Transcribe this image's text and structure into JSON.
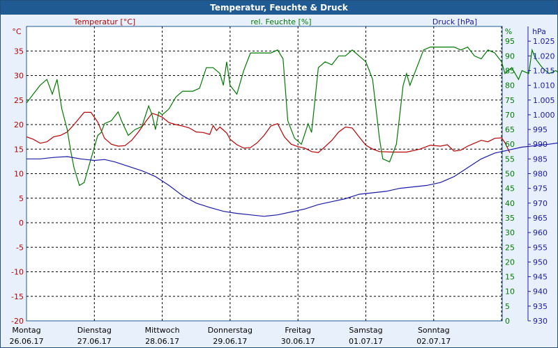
{
  "window": {
    "title": "Temperatur, Feuchte & Druck"
  },
  "chart_data": {
    "type": "line",
    "title": "Temperatur, Feuchte & Druck",
    "grid": true,
    "colors": {
      "temperature": "#b80000",
      "humidity": "#007a00",
      "pressure": "#1a1aa8",
      "frame": "#1f5b92"
    },
    "axes": {
      "temperature": {
        "unit": "°C",
        "label": "Temperatur [°C]",
        "range": [
          -20,
          40
        ],
        "ticks": [
          "35",
          "30",
          "25",
          "20",
          "15",
          "10",
          "5",
          "0",
          "-5",
          "-10",
          "-15",
          "-20"
        ]
      },
      "humidity": {
        "unit": "%",
        "label": "rel. Feuchte [%]",
        "range": [
          0,
          100
        ],
        "ticks": [
          "95",
          "90",
          "85",
          "80",
          "75",
          "70",
          "65",
          "60",
          "55",
          "50",
          "45",
          "40",
          "35",
          "30",
          "25",
          "20",
          "15",
          "10",
          "5",
          "0"
        ]
      },
      "pressure": {
        "unit": "hPa",
        "label": "Druck [hPa]",
        "range": [
          930,
          1030
        ],
        "ticks": [
          "1.025",
          "1.020",
          "1.015",
          "1.010",
          "1.005",
          "1.000",
          "995",
          "990",
          "985",
          "980",
          "975",
          "970",
          "965",
          "960",
          "955",
          "950",
          "945",
          "940",
          "935",
          "930"
        ]
      }
    },
    "days": [
      {
        "name": "Montag",
        "date": "26.06.17"
      },
      {
        "name": "Dienstag",
        "date": "27.06.17"
      },
      {
        "name": "Mittwoch",
        "date": "28.06.17"
      },
      {
        "name": "Donnerstag",
        "date": "29.06.17"
      },
      {
        "name": "Freitag",
        "date": "30.06.17"
      },
      {
        "name": "Samstag",
        "date": "01.07.17"
      },
      {
        "name": "Sonntag",
        "date": "02.07.17"
      }
    ],
    "x_range_days": [
      0,
      7
    ],
    "series": [
      {
        "name": "Temperatur [°C]",
        "axis": "temperature",
        "points": [
          [
            0,
            17.5
          ],
          [
            0.1,
            17
          ],
          [
            0.2,
            16.2
          ],
          [
            0.3,
            16.5
          ],
          [
            0.4,
            17.5
          ],
          [
            0.5,
            17.8
          ],
          [
            0.6,
            18.5
          ],
          [
            0.7,
            20
          ],
          [
            0.85,
            22.5
          ],
          [
            0.95,
            22.5
          ],
          [
            1.05,
            20.5
          ],
          [
            1.15,
            17.2
          ],
          [
            1.25,
            16
          ],
          [
            1.35,
            15.6
          ],
          [
            1.45,
            15.7
          ],
          [
            1.55,
            16.8
          ],
          [
            1.65,
            18.5
          ],
          [
            1.75,
            20.5
          ],
          [
            1.85,
            22.3
          ],
          [
            1.92,
            22
          ],
          [
            2.0,
            21.5
          ],
          [
            2.1,
            20.4
          ],
          [
            2.2,
            20
          ],
          [
            2.3,
            19.7
          ],
          [
            2.4,
            19.3
          ],
          [
            2.5,
            18.5
          ],
          [
            2.6,
            18.4
          ],
          [
            2.7,
            18
          ],
          [
            2.75,
            19.8
          ],
          [
            2.8,
            18.8
          ],
          [
            2.85,
            19.5
          ],
          [
            2.95,
            18.3
          ],
          [
            3.0,
            17
          ],
          [
            3.1,
            15.9
          ],
          [
            3.2,
            15.2
          ],
          [
            3.3,
            15.3
          ],
          [
            3.4,
            16.3
          ],
          [
            3.5,
            17.8
          ],
          [
            3.6,
            19.7
          ],
          [
            3.7,
            20.2
          ],
          [
            3.8,
            17.5
          ],
          [
            3.9,
            16
          ],
          [
            4.0,
            15.5
          ],
          [
            4.1,
            15.2
          ],
          [
            4.2,
            14.5
          ],
          [
            4.3,
            14.3
          ],
          [
            4.4,
            15.5
          ],
          [
            4.5,
            16.8
          ],
          [
            4.6,
            18.5
          ],
          [
            4.7,
            19.5
          ],
          [
            4.8,
            19.3
          ],
          [
            4.9,
            17.5
          ],
          [
            5.0,
            15.8
          ],
          [
            5.1,
            15
          ],
          [
            5.2,
            14.5
          ],
          [
            5.4,
            14.4
          ],
          [
            5.6,
            14.4
          ],
          [
            5.8,
            15
          ],
          [
            5.95,
            15.8
          ],
          [
            6.1,
            15.6
          ],
          [
            6.2,
            15.9
          ],
          [
            6.3,
            14.6
          ],
          [
            6.4,
            14.8
          ],
          [
            6.5,
            15.6
          ],
          [
            6.6,
            16.2
          ],
          [
            6.7,
            16.8
          ],
          [
            6.8,
            16.5
          ],
          [
            6.9,
            17.2
          ],
          [
            7.0,
            17.3
          ],
          [
            7.05,
            16.3
          ],
          [
            7.12,
            14.3
          ]
        ]
      },
      {
        "name": "rel. Feuchte [%]",
        "axis": "humidity",
        "points": [
          [
            0,
            74
          ],
          [
            0.1,
            77
          ],
          [
            0.2,
            80
          ],
          [
            0.3,
            82
          ],
          [
            0.38,
            77
          ],
          [
            0.45,
            82
          ],
          [
            0.52,
            72
          ],
          [
            0.6,
            65
          ],
          [
            0.65,
            58
          ],
          [
            0.7,
            52
          ],
          [
            0.78,
            46
          ],
          [
            0.85,
            47
          ],
          [
            0.95,
            55
          ],
          [
            1.05,
            63
          ],
          [
            1.1,
            64
          ],
          [
            1.15,
            67
          ],
          [
            1.25,
            68
          ],
          [
            1.35,
            71
          ],
          [
            1.4,
            68
          ],
          [
            1.5,
            63
          ],
          [
            1.6,
            65
          ],
          [
            1.7,
            66
          ],
          [
            1.8,
            73
          ],
          [
            1.85,
            70
          ],
          [
            1.9,
            65
          ],
          [
            1.95,
            71
          ],
          [
            2.0,
            70
          ],
          [
            2.1,
            72
          ],
          [
            2.2,
            76
          ],
          [
            2.3,
            78
          ],
          [
            2.45,
            78
          ],
          [
            2.55,
            79
          ],
          [
            2.65,
            86
          ],
          [
            2.75,
            86
          ],
          [
            2.85,
            84
          ],
          [
            2.9,
            80
          ],
          [
            2.95,
            88
          ],
          [
            3.0,
            80
          ],
          [
            3.1,
            77
          ],
          [
            3.2,
            85
          ],
          [
            3.3,
            91
          ],
          [
            3.45,
            91
          ],
          [
            3.6,
            91
          ],
          [
            3.7,
            92
          ],
          [
            3.78,
            89
          ],
          [
            3.85,
            68
          ],
          [
            3.95,
            62
          ],
          [
            4.05,
            60
          ],
          [
            4.15,
            67
          ],
          [
            4.2,
            64
          ],
          [
            4.3,
            86
          ],
          [
            4.4,
            88
          ],
          [
            4.5,
            87
          ],
          [
            4.6,
            90
          ],
          [
            4.7,
            90
          ],
          [
            4.8,
            92
          ],
          [
            4.9,
            90
          ],
          [
            5.0,
            88
          ],
          [
            5.05,
            85
          ],
          [
            5.1,
            82
          ],
          [
            5.15,
            72
          ],
          [
            5.2,
            62
          ],
          [
            5.25,
            55
          ],
          [
            5.35,
            54
          ],
          [
            5.45,
            60
          ],
          [
            5.55,
            80
          ],
          [
            5.6,
            84
          ],
          [
            5.65,
            80
          ],
          [
            5.75,
            86
          ],
          [
            5.85,
            92
          ],
          [
            5.95,
            93
          ],
          [
            6.05,
            93
          ],
          [
            6.15,
            93
          ],
          [
            6.3,
            93
          ],
          [
            6.4,
            92
          ],
          [
            6.5,
            93
          ],
          [
            6.6,
            90
          ],
          [
            6.7,
            89
          ],
          [
            6.8,
            92
          ],
          [
            6.9,
            91
          ],
          [
            7.0,
            88
          ],
          [
            7.05,
            84
          ],
          [
            7.15,
            86
          ],
          [
            7.25,
            82
          ],
          [
            7.3,
            85
          ],
          [
            7.4,
            84
          ],
          [
            7.45,
            92
          ],
          [
            7.5,
            89
          ],
          [
            7.6,
            86
          ],
          [
            7.7,
            84
          ],
          [
            7.8,
            85
          ],
          [
            7.9,
            83
          ],
          [
            7.95,
            80
          ],
          [
            8.0,
            82
          ]
        ]
      },
      {
        "name": "Druck [hPa]",
        "axis": "pressure",
        "points": [
          [
            0,
            985
          ],
          [
            0.2,
            985
          ],
          [
            0.4,
            985.5
          ],
          [
            0.6,
            985.8
          ],
          [
            0.8,
            985
          ],
          [
            1.0,
            984.5
          ],
          [
            1.15,
            984.8
          ],
          [
            1.3,
            984
          ],
          [
            1.5,
            982.5
          ],
          [
            1.7,
            981
          ],
          [
            1.9,
            979
          ],
          [
            2.1,
            976
          ],
          [
            2.3,
            972.5
          ],
          [
            2.5,
            970
          ],
          [
            2.7,
            968.5
          ],
          [
            2.9,
            967.2
          ],
          [
            3.1,
            966.5
          ],
          [
            3.3,
            966
          ],
          [
            3.5,
            965.5
          ],
          [
            3.7,
            966
          ],
          [
            3.9,
            967
          ],
          [
            4.1,
            968
          ],
          [
            4.3,
            969.5
          ],
          [
            4.5,
            970.5
          ],
          [
            4.7,
            971.5
          ],
          [
            4.9,
            973
          ],
          [
            5.1,
            973.5
          ],
          [
            5.3,
            974
          ],
          [
            5.5,
            975
          ],
          [
            5.7,
            975.5
          ],
          [
            5.9,
            976
          ],
          [
            6.1,
            977
          ],
          [
            6.3,
            979
          ],
          [
            6.5,
            982
          ],
          [
            6.7,
            985
          ],
          [
            6.9,
            987
          ],
          [
            7.1,
            988
          ],
          [
            7.3,
            989
          ],
          [
            7.5,
            989.5
          ],
          [
            7.7,
            990
          ],
          [
            7.85,
            990.5
          ],
          [
            8.0,
            991
          ]
        ]
      }
    ]
  }
}
